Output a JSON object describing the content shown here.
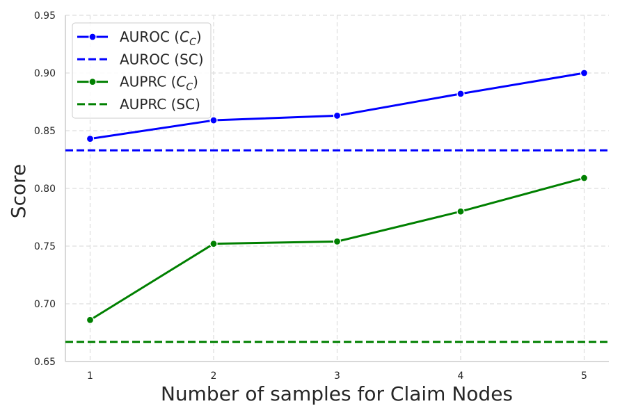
{
  "chart_data": {
    "type": "line",
    "title": "",
    "xlabel": "Number of samples for Claim Nodes",
    "ylabel": "Score",
    "x": [
      1,
      2,
      3,
      4,
      5
    ],
    "xticks": [
      "1",
      "2",
      "3",
      "4",
      "5"
    ],
    "xlim": [
      0.8,
      5.2
    ],
    "ylim": [
      0.65,
      0.95
    ],
    "yticks": [
      "0.65",
      "0.70",
      "0.75",
      "0.80",
      "0.85",
      "0.90",
      "0.95"
    ],
    "grid": true,
    "legend_position": "top-left",
    "series": [
      {
        "name": "AUROC (C_C)",
        "values": [
          0.843,
          0.859,
          0.863,
          0.882,
          0.9
        ],
        "color": "#0000ff",
        "style": "solid",
        "marker": "circle"
      },
      {
        "name": "AUROC (SC)",
        "constant": 0.833,
        "color": "#0000ff",
        "style": "dashed"
      },
      {
        "name": "AUPRC (C_C)",
        "values": [
          0.686,
          0.752,
          0.754,
          0.78,
          0.809
        ],
        "color": "#008000",
        "style": "solid",
        "marker": "circle"
      },
      {
        "name": "AUPRC (SC)",
        "constant": 0.667,
        "color": "#008000",
        "style": "dashed"
      }
    ],
    "legend": [
      {
        "main": "AUROC (",
        "italic": "C",
        "sub": "C",
        "close": ")"
      },
      {
        "main": "AUROC (SC)"
      },
      {
        "main": "AUPRC (",
        "italic": "C",
        "sub": "C",
        "close": ")"
      },
      {
        "main": "AUPRC (SC)"
      }
    ]
  }
}
